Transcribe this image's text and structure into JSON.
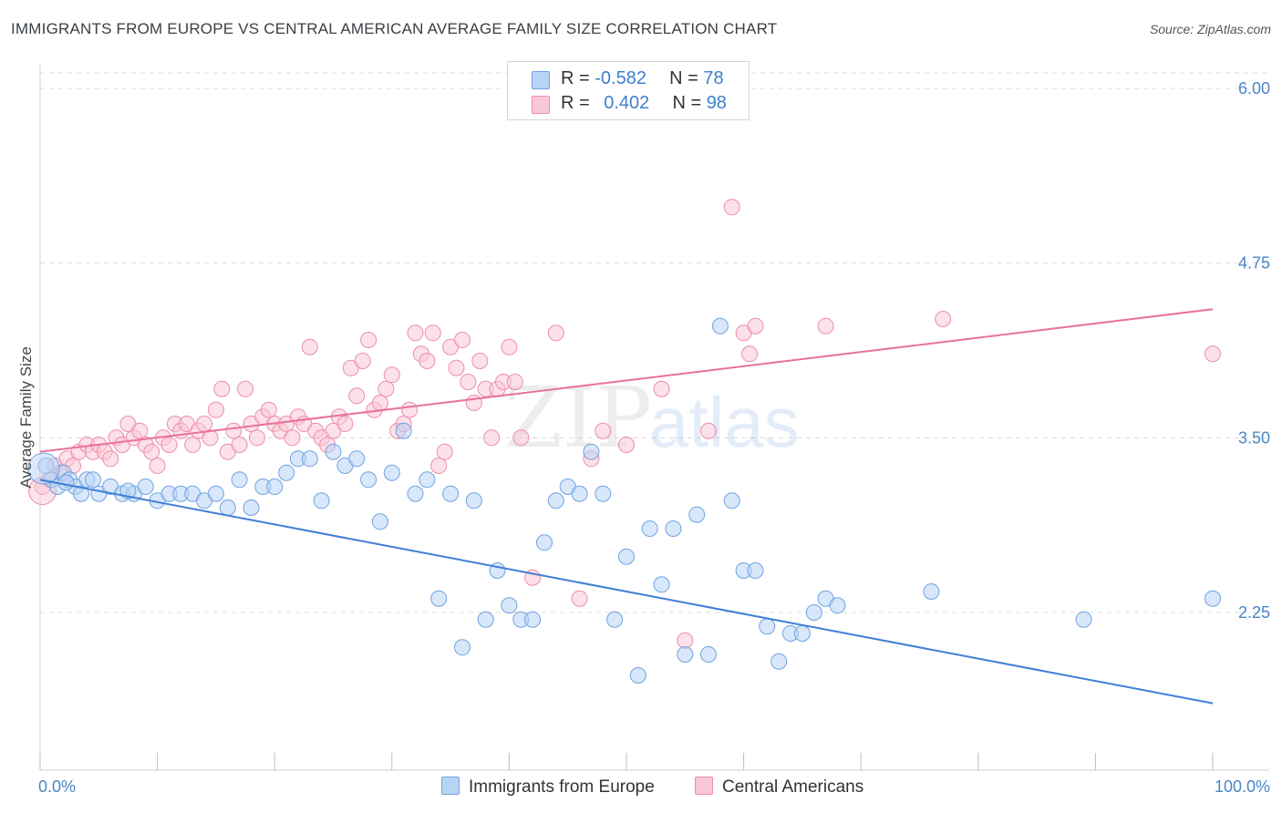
{
  "title": "IMMIGRANTS FROM EUROPE VS CENTRAL AMERICAN AVERAGE FAMILY SIZE CORRELATION CHART",
  "source": "Source: ZipAtlas.com",
  "watermark": {
    "zip": "ZIP",
    "atlas": "atlas"
  },
  "legend": {
    "series": [
      {
        "r_label": "R = ",
        "r_value": "-0.582",
        "n_label": "N = ",
        "n_value": "78",
        "fill": "#b8d4f5",
        "stroke": "#6fa3e0"
      },
      {
        "r_label": "R = ",
        "r_value": "0.402",
        "n_label": "N = ",
        "n_value": "98",
        "fill": "#f9c8d6",
        "stroke": "#ec8eaa"
      }
    ]
  },
  "bottom_legend": [
    "Immigrants from Europe",
    "Central Americans"
  ],
  "chart_data": {
    "type": "scatter",
    "xlabel": "",
    "ylabel": "Average Family Size",
    "x_tick_labels": [
      "0.0%",
      "100.0%"
    ],
    "y_tick_labels": [
      "6.00",
      "4.75",
      "3.50",
      "2.25"
    ],
    "y_ticks": [
      6.0,
      4.75,
      3.5,
      2.25
    ],
    "xlim": [
      0,
      100
    ],
    "ylim": [
      1.1,
      6.15
    ],
    "grid": "dashed-horizontal",
    "legend_position": "top-center",
    "colors": {
      "europe": "#3f7fd6",
      "central": "#e8729a",
      "europe_fill": "#b8d4f5",
      "central_fill": "#f9c8d6"
    },
    "series": [
      {
        "name": "Immigrants from Europe",
        "r": -0.582,
        "n": 78,
        "trend": {
          "x": [
            0,
            100
          ],
          "y": [
            3.2,
            1.6
          ]
        },
        "points": [
          [
            0.5,
            3.3
          ],
          [
            1,
            3.2
          ],
          [
            1.5,
            3.15
          ],
          [
            2,
            3.25
          ],
          [
            2.5,
            3.2
          ],
          [
            3,
            3.15
          ],
          [
            3.5,
            3.1
          ],
          [
            4,
            3.2
          ],
          [
            4.5,
            3.2
          ],
          [
            5,
            3.1
          ],
          [
            6,
            3.15
          ],
          [
            7,
            3.1
          ],
          [
            8,
            3.1
          ],
          [
            9,
            3.15
          ],
          [
            10,
            3.05
          ],
          [
            11,
            3.1
          ],
          [
            12,
            3.1
          ],
          [
            13,
            3.1
          ],
          [
            14,
            3.05
          ],
          [
            15,
            3.1
          ],
          [
            16,
            3.0
          ],
          [
            17,
            3.2
          ],
          [
            18,
            3.0
          ],
          [
            19,
            3.15
          ],
          [
            20,
            3.15
          ],
          [
            21,
            3.25
          ],
          [
            22,
            3.35
          ],
          [
            23,
            3.35
          ],
          [
            24,
            3.05
          ],
          [
            25,
            3.4
          ],
          [
            26,
            3.3
          ],
          [
            27,
            3.35
          ],
          [
            28,
            3.2
          ],
          [
            29,
            2.9
          ],
          [
            30,
            3.25
          ],
          [
            31,
            3.55
          ],
          [
            32,
            3.1
          ],
          [
            33,
            3.2
          ],
          [
            34,
            2.35
          ],
          [
            35,
            3.1
          ],
          [
            36,
            2.0
          ],
          [
            37,
            3.05
          ],
          [
            38,
            2.2
          ],
          [
            39,
            2.55
          ],
          [
            40,
            2.3
          ],
          [
            41,
            2.2
          ],
          [
            42,
            2.2
          ],
          [
            43,
            2.75
          ],
          [
            44,
            3.05
          ],
          [
            45,
            3.15
          ],
          [
            46,
            3.1
          ],
          [
            47,
            3.4
          ],
          [
            48,
            3.1
          ],
          [
            49,
            2.2
          ],
          [
            50,
            2.65
          ],
          [
            51,
            1.8
          ],
          [
            52,
            2.85
          ],
          [
            53,
            2.45
          ],
          [
            54,
            2.85
          ],
          [
            55,
            1.95
          ],
          [
            56,
            2.95
          ],
          [
            57,
            1.95
          ],
          [
            58,
            4.3
          ],
          [
            59,
            3.05
          ],
          [
            60,
            2.55
          ],
          [
            61,
            2.55
          ],
          [
            62,
            2.15
          ],
          [
            63,
            1.9
          ],
          [
            64,
            2.1
          ],
          [
            65,
            2.1
          ],
          [
            66,
            2.25
          ],
          [
            67,
            2.35
          ],
          [
            68,
            2.3
          ],
          [
            76,
            2.4
          ],
          [
            89,
            2.2
          ],
          [
            100,
            2.35
          ],
          [
            2.2,
            3.18
          ],
          [
            7.5,
            3.12
          ]
        ]
      },
      {
        "name": "Central Americans",
        "r": 0.402,
        "n": 98,
        "trend": {
          "x": [
            0,
            100
          ],
          "y": [
            3.4,
            4.42
          ]
        },
        "points": [
          [
            0.2,
            3.15
          ],
          [
            0.8,
            3.2
          ],
          [
            1.3,
            3.3
          ],
          [
            1.8,
            3.25
          ],
          [
            2.3,
            3.35
          ],
          [
            2.8,
            3.3
          ],
          [
            3.3,
            3.4
          ],
          [
            4,
            3.45
          ],
          [
            4.5,
            3.4
          ],
          [
            5,
            3.45
          ],
          [
            5.5,
            3.4
          ],
          [
            6,
            3.35
          ],
          [
            6.5,
            3.5
          ],
          [
            7,
            3.45
          ],
          [
            7.5,
            3.6
          ],
          [
            8,
            3.5
          ],
          [
            8.5,
            3.55
          ],
          [
            9,
            3.45
          ],
          [
            9.5,
            3.4
          ],
          [
            10,
            3.3
          ],
          [
            10.5,
            3.5
          ],
          [
            11,
            3.45
          ],
          [
            11.5,
            3.6
          ],
          [
            12,
            3.55
          ],
          [
            12.5,
            3.6
          ],
          [
            13,
            3.45
          ],
          [
            13.5,
            3.55
          ],
          [
            14,
            3.6
          ],
          [
            14.5,
            3.5
          ],
          [
            15,
            3.7
          ],
          [
            15.5,
            3.85
          ],
          [
            16,
            3.4
          ],
          [
            16.5,
            3.55
          ],
          [
            17,
            3.45
          ],
          [
            17.5,
            3.85
          ],
          [
            18,
            3.6
          ],
          [
            18.5,
            3.5
          ],
          [
            19,
            3.65
          ],
          [
            19.5,
            3.7
          ],
          [
            20,
            3.6
          ],
          [
            20.5,
            3.55
          ],
          [
            21,
            3.6
          ],
          [
            21.5,
            3.5
          ],
          [
            22,
            3.65
          ],
          [
            22.5,
            3.6
          ],
          [
            23,
            4.15
          ],
          [
            23.5,
            3.55
          ],
          [
            24,
            3.5
          ],
          [
            24.5,
            3.45
          ],
          [
            25,
            3.55
          ],
          [
            25.5,
            3.65
          ],
          [
            26,
            3.6
          ],
          [
            26.5,
            4.0
          ],
          [
            27,
            3.8
          ],
          [
            27.5,
            4.05
          ],
          [
            28,
            4.2
          ],
          [
            28.5,
            3.7
          ],
          [
            29,
            3.75
          ],
          [
            29.5,
            3.85
          ],
          [
            30,
            3.95
          ],
          [
            30.5,
            3.55
          ],
          [
            31,
            3.6
          ],
          [
            31.5,
            3.7
          ],
          [
            32,
            4.25
          ],
          [
            32.5,
            4.1
          ],
          [
            33,
            4.05
          ],
          [
            33.5,
            4.25
          ],
          [
            34,
            3.3
          ],
          [
            34.5,
            3.4
          ],
          [
            35,
            4.15
          ],
          [
            35.5,
            4.0
          ],
          [
            36,
            4.2
          ],
          [
            36.5,
            3.9
          ],
          [
            37,
            3.75
          ],
          [
            37.5,
            4.05
          ],
          [
            38,
            3.85
          ],
          [
            38.5,
            3.5
          ],
          [
            39,
            3.85
          ],
          [
            39.5,
            3.9
          ],
          [
            40,
            4.15
          ],
          [
            40.5,
            3.9
          ],
          [
            41,
            3.5
          ],
          [
            42,
            2.5
          ],
          [
            44,
            4.25
          ],
          [
            47,
            3.35
          ],
          [
            48,
            3.55
          ],
          [
            55,
            2.05
          ],
          [
            57,
            3.55
          ],
          [
            59,
            5.15
          ],
          [
            60,
            4.25
          ],
          [
            60.5,
            4.1
          ],
          [
            61,
            4.3
          ],
          [
            67,
            4.3
          ],
          [
            77,
            4.35
          ],
          [
            100,
            4.1
          ],
          [
            46,
            2.35
          ],
          [
            50,
            3.45
          ],
          [
            53,
            3.85
          ]
        ]
      }
    ]
  }
}
